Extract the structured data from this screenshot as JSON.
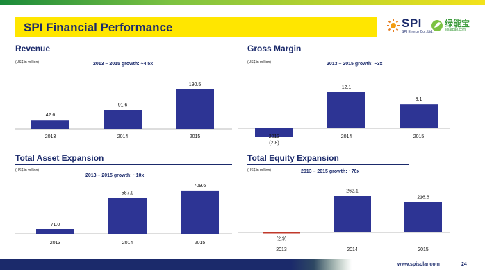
{
  "slide": {
    "title": "SPI Financial Performance",
    "brand_colors": {
      "navy": "#1b2a6b",
      "yellow": "#ffe600",
      "green": "#7cc242",
      "bar": "#2d3494",
      "negative_bar": "#c0392b"
    },
    "footer_url": "www.spisolar.com",
    "page_number": "24"
  },
  "logo": {
    "spi": "SPI",
    "spi_sub": "SPI Energy Co., Ltd.",
    "cn": "绿能宝",
    "cn_sub": "solarbao.com"
  },
  "panels": {
    "revenue": {
      "title": "Revenue",
      "unit": "(US$ in million)",
      "growth": "2013 – 2015 growth: ~4.5x"
    },
    "gross_margin": {
      "title": "Gross Margin",
      "unit": "(US$ in million)",
      "growth": "2013 – 2015 growth: ~3x"
    },
    "assets": {
      "title": "Total Asset Expansion",
      "unit": "(US$ in million)",
      "growth": "2013 – 2015 growth: ~10x"
    },
    "equity": {
      "title": "Total Equity Expansion",
      "unit": "(US$ in million)",
      "growth": "2013 – 2015 growth: ~76x"
    }
  },
  "chart_data": [
    {
      "type": "bar",
      "title": "Revenue",
      "categories": [
        "2013",
        "2014",
        "2015"
      ],
      "values": [
        42.6,
        91.6,
        190.5
      ],
      "labels": [
        "42.6",
        "91.6",
        "190.5"
      ],
      "ylim": [
        0,
        210
      ]
    },
    {
      "type": "bar",
      "title": "Gross Margin",
      "categories": [
        "2013",
        "2014",
        "2015"
      ],
      "values": [
        -2.8,
        12.1,
        8.1
      ],
      "labels": [
        "(2.8)",
        "12.1",
        "8.1"
      ],
      "ylim": [
        -2.8,
        14
      ]
    },
    {
      "type": "bar",
      "title": "Total Asset Expansion",
      "categories": [
        "2013",
        "2014",
        "2015"
      ],
      "values": [
        71.0,
        587.9,
        709.6
      ],
      "labels": [
        "71.0",
        "587.9",
        "709.6"
      ],
      "ylim": [
        0,
        780
      ]
    },
    {
      "type": "bar",
      "title": "Total Equity Expansion",
      "categories": [
        "2013",
        "2014",
        "2015"
      ],
      "values": [
        -2.9,
        262.1,
        216.6
      ],
      "labels": [
        "(2.9)",
        "262.1",
        "216.6"
      ],
      "ylim": [
        -2.9,
        290
      ]
    }
  ]
}
